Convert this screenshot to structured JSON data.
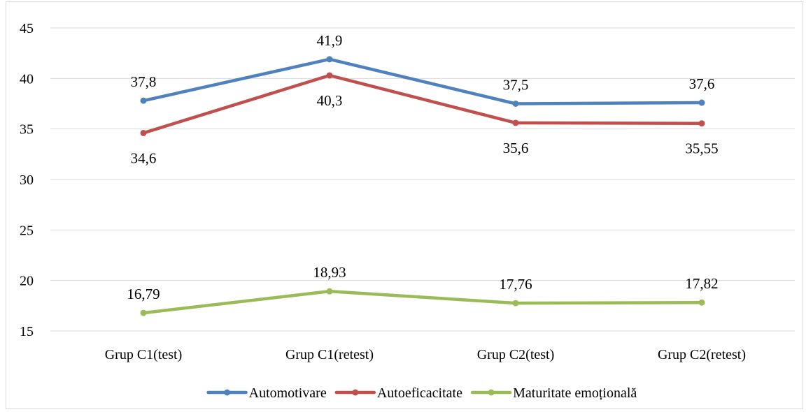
{
  "chart_data": {
    "type": "line",
    "title": "",
    "xlabel": "",
    "ylabel": "",
    "categories": [
      "Grup C1(test)",
      "Grup C1(retest)",
      "Grup C2(test)",
      "Grup C2(retest)"
    ],
    "ylim": [
      15,
      45
    ],
    "yticks": [
      15,
      20,
      25,
      30,
      35,
      40,
      45
    ],
    "grid": true,
    "legend_position": "bottom",
    "series": [
      {
        "name": "Automotivare",
        "color": "#4f81bd",
        "values": [
          37.8,
          41.9,
          37.5,
          37.6
        ],
        "labels": [
          "37,8",
          "41,9",
          "37,5",
          "37,6"
        ],
        "label_positions": [
          "above",
          "above",
          "above",
          "above"
        ]
      },
      {
        "name": "Autoeficacitate",
        "color": "#c0504d",
        "values": [
          34.6,
          40.3,
          35.6,
          35.55
        ],
        "labels": [
          "34,6",
          "40,3",
          "35,6",
          "35,55"
        ],
        "label_positions": [
          "below",
          "below",
          "below",
          "below"
        ]
      },
      {
        "name": "Maturitate emoțională",
        "color": "#9bbb59",
        "values": [
          16.79,
          18.93,
          17.76,
          17.82
        ],
        "labels": [
          "16,79",
          "18,93",
          "17,76",
          "17,82"
        ],
        "label_positions": [
          "above",
          "above",
          "above",
          "above"
        ]
      }
    ]
  }
}
